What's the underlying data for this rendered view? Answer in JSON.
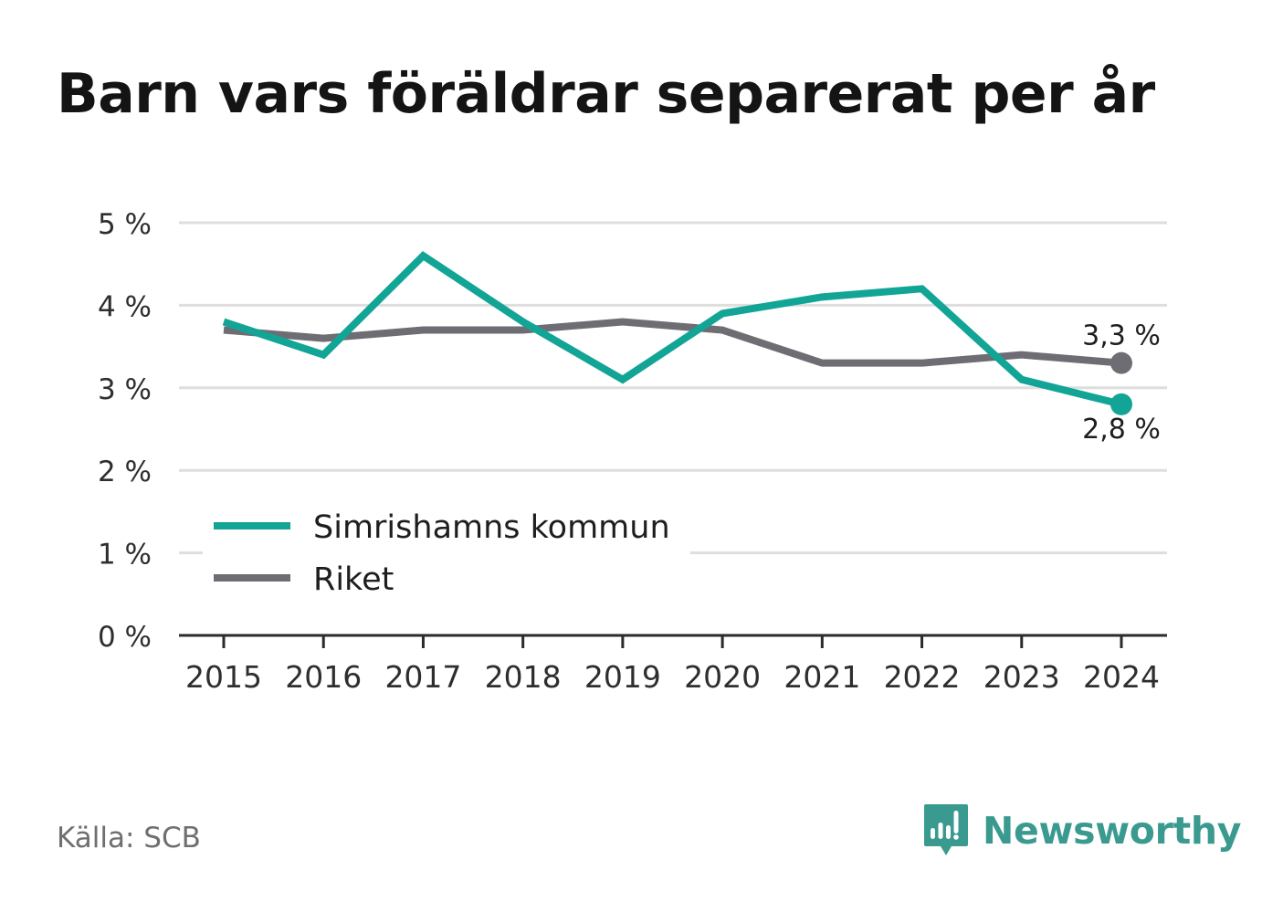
{
  "title": "Barn vars föräldrar separerat per år",
  "source": "Källa: SCB",
  "brand": {
    "name": "Newsworthy",
    "icon": "bar-chart-icon"
  },
  "colors": {
    "series1": "#12a596",
    "series2": "#6e6d74",
    "grid": "#dedede",
    "axis": "#2b2b2b",
    "brand": "#3a9a8f"
  },
  "chart_data": {
    "type": "line",
    "x": [
      "2015",
      "2016",
      "2017",
      "2018",
      "2019",
      "2020",
      "2021",
      "2022",
      "2023",
      "2024"
    ],
    "y_ticks": [
      "0 %",
      "1 %",
      "2 %",
      "3 %",
      "4 %",
      "5 %"
    ],
    "ylim": [
      0,
      5
    ],
    "grid": true,
    "legend_position": "lower-left",
    "series": [
      {
        "name": "Simrishamns kommun",
        "color": "#12a596",
        "values": [
          3.8,
          3.4,
          4.6,
          3.8,
          3.1,
          3.9,
          4.1,
          4.2,
          3.1,
          2.8
        ],
        "end_label": "2,8 %"
      },
      {
        "name": "Riket",
        "color": "#6e6d74",
        "values": [
          3.7,
          3.6,
          3.7,
          3.7,
          3.8,
          3.7,
          3.3,
          3.3,
          3.4,
          3.3
        ],
        "end_label": "3,3 %"
      }
    ]
  }
}
